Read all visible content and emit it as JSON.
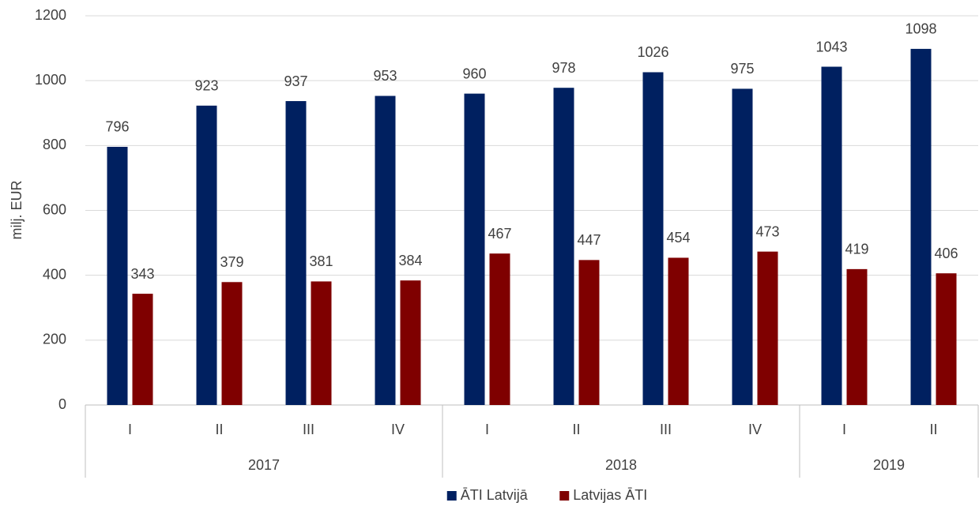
{
  "chart_data": {
    "type": "bar",
    "y_label": "milj. EUR",
    "groups": [
      {
        "name": "2017",
        "categories": [
          "I",
          "II",
          "III",
          "IV"
        ]
      },
      {
        "name": "2018",
        "categories": [
          "I",
          "II",
          "III",
          "IV"
        ]
      },
      {
        "name": "2019",
        "categories": [
          "I",
          "II"
        ]
      }
    ],
    "series": [
      {
        "name": "ĀTI Latvijā",
        "color": "#002060",
        "values": [
          796,
          923,
          937,
          953,
          960,
          978,
          1026,
          975,
          1043,
          1098
        ]
      },
      {
        "name": "Latvijas ĀTI",
        "color": "#7f0000",
        "values": [
          343,
          379,
          381,
          384,
          467,
          447,
          454,
          473,
          419,
          406
        ]
      }
    ],
    "ylim": [
      0,
      1200
    ],
    "yticks": [
      0,
      200,
      400,
      600,
      800,
      1000,
      1200
    ],
    "grid": true,
    "legend": "bottom"
  }
}
